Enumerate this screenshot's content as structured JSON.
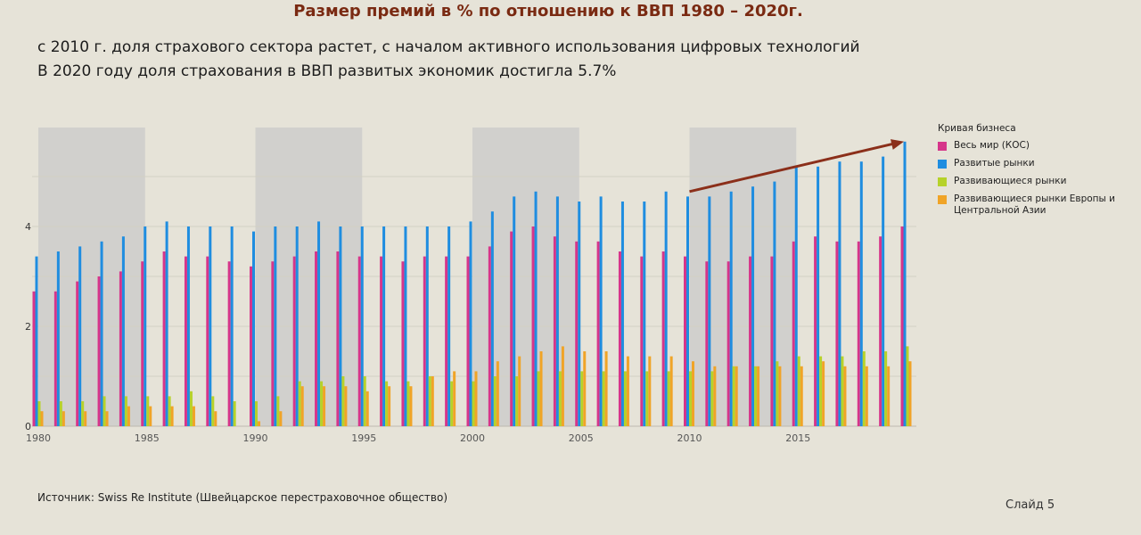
{
  "slide": {
    "title": "Размер премий в % по отношению к ВВП 1980 – 2020г.",
    "subtitle_line1": "с 2010 г. доля страхового сектора растет, с началом активного использования цифровых технологий",
    "subtitle_line2": "В 2020 году доля страхования в ВВП развитых экономик достигла 5.7%",
    "source_label": "Источник:",
    "source_text": "Swiss Re Institute (Швейцарское перестраховочное общество)",
    "slide_number": "Слайд 5"
  },
  "colors": {
    "background": "#e6e3d8",
    "title": "#7a2a12",
    "world": "#d6358a",
    "advanced": "#1f8de0",
    "emerging": "#b6d22a",
    "emerging_europe_asia": "#f0a427",
    "shade": "#c9c9c9",
    "trend_arrow": "#8b2f1a"
  },
  "chart_data": {
    "type": "bar",
    "title": "Размер премий в % по отношению к ВВП 1980 – 2020г.",
    "x": [
      1980,
      1981,
      1982,
      1983,
      1984,
      1985,
      1986,
      1987,
      1988,
      1989,
      1990,
      1991,
      1992,
      1993,
      1994,
      1995,
      1996,
      1997,
      1998,
      1999,
      2000,
      2001,
      2002,
      2003,
      2004,
      2005,
      2006,
      2007,
      2008,
      2009,
      2010,
      2011,
      2012,
      2013,
      2014,
      2015,
      2016,
      2017,
      2018,
      2019,
      2020
    ],
    "x_tick_labels": [
      "1980",
      "1985",
      "1990",
      "1995",
      "2000",
      "2005",
      "2010",
      "2015"
    ],
    "ylim": [
      0,
      6
    ],
    "y_tick_labels": [
      "0",
      "2",
      "4"
    ],
    "legend_title": "Кривая бизнеса",
    "legend_position": "right",
    "grid": true,
    "shaded_periods": [
      [
        1980,
        1984
      ],
      [
        1990,
        1994
      ],
      [
        2000,
        2004
      ],
      [
        2010,
        2014
      ]
    ],
    "trend_arrow": {
      "from": [
        2010,
        4.7
      ],
      "to": [
        2020,
        5.7
      ]
    },
    "series": [
      {
        "name": "Весь мир (КОС)",
        "color_key": "world",
        "values": [
          2.7,
          2.7,
          2.9,
          3.0,
          3.1,
          3.3,
          3.5,
          3.4,
          3.4,
          3.3,
          3.2,
          3.3,
          3.4,
          3.5,
          3.5,
          3.4,
          3.4,
          3.3,
          3.4,
          3.4,
          3.4,
          3.6,
          3.9,
          4.0,
          3.8,
          3.7,
          3.7,
          3.5,
          3.4,
          3.5,
          3.4,
          3.3,
          3.3,
          3.4,
          3.4,
          3.7,
          3.8,
          3.7,
          3.7,
          3.8,
          4.0
        ]
      },
      {
        "name": "Развитые рынки",
        "color_key": "advanced",
        "values": [
          3.4,
          3.5,
          3.6,
          3.7,
          3.8,
          4.0,
          4.1,
          4.0,
          4.0,
          4.0,
          3.9,
          4.0,
          4.0,
          4.1,
          4.0,
          4.0,
          4.0,
          4.0,
          4.0,
          4.0,
          4.1,
          4.3,
          4.6,
          4.7,
          4.6,
          4.5,
          4.6,
          4.5,
          4.5,
          4.7,
          4.6,
          4.6,
          4.7,
          4.8,
          4.9,
          5.2,
          5.2,
          5.3,
          5.3,
          5.4,
          5.7
        ]
      },
      {
        "name": "Развивающиеся рынки",
        "color_key": "emerging",
        "values": [
          0.5,
          0.5,
          0.5,
          0.6,
          0.6,
          0.6,
          0.6,
          0.7,
          0.6,
          0.5,
          0.5,
          0.6,
          0.9,
          0.9,
          1.0,
          1.0,
          0.9,
          0.9,
          1.0,
          0.9,
          0.9,
          1.0,
          1.0,
          1.1,
          1.1,
          1.1,
          1.1,
          1.1,
          1.1,
          1.1,
          1.1,
          1.1,
          1.2,
          1.2,
          1.3,
          1.4,
          1.4,
          1.4,
          1.5,
          1.5,
          1.6
        ]
      },
      {
        "name": "Развивающиеся рынки Европы и Центральной Азии",
        "color_key": "emerging_europe_asia",
        "values": [
          0.3,
          0.3,
          0.3,
          0.3,
          0.4,
          0.4,
          0.4,
          0.4,
          0.3,
          0.0,
          0.1,
          0.3,
          0.8,
          0.8,
          0.8,
          0.7,
          0.8,
          0.8,
          1.0,
          1.1,
          1.1,
          1.3,
          1.4,
          1.5,
          1.6,
          1.5,
          1.5,
          1.4,
          1.4,
          1.4,
          1.3,
          1.2,
          1.2,
          1.2,
          1.2,
          1.2,
          1.3,
          1.2,
          1.2,
          1.2,
          1.3
        ]
      }
    ]
  }
}
